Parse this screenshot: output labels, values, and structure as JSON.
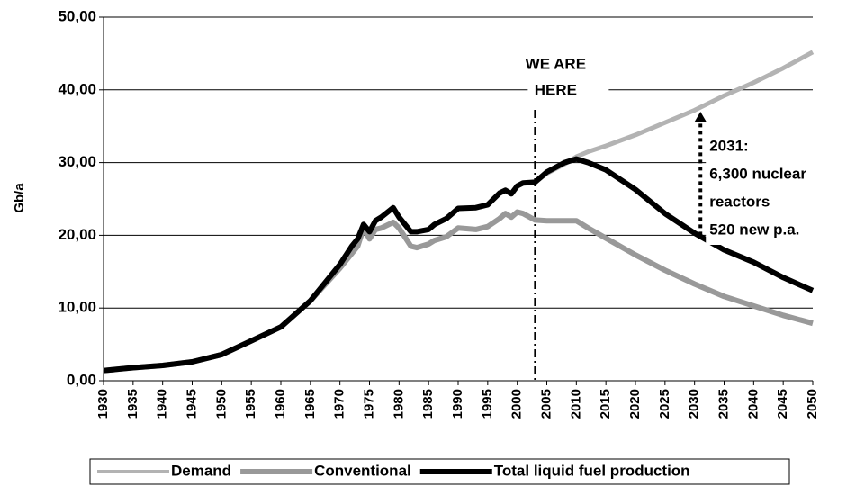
{
  "chart_data": {
    "type": "line",
    "ylabel": "Gb/a",
    "x": [
      1930,
      1935,
      1940,
      1945,
      1950,
      1955,
      1960,
      1965,
      1970,
      1972,
      1973,
      1974,
      1975,
      1976,
      1977,
      1979,
      1980,
      1982,
      1983,
      1985,
      1986,
      1988,
      1990,
      1993,
      1995,
      1997,
      1998,
      1999,
      2000,
      2001,
      2003,
      2005,
      2008,
      2010,
      2012,
      2015,
      2020,
      2025,
      2030,
      2035,
      2040,
      2045,
      2050
    ],
    "series": [
      {
        "name": "Demand",
        "color": "#b3b3b3",
        "values": [
          null,
          null,
          null,
          null,
          null,
          null,
          null,
          null,
          null,
          null,
          null,
          null,
          null,
          null,
          null,
          null,
          null,
          null,
          null,
          null,
          null,
          null,
          null,
          null,
          null,
          null,
          null,
          null,
          null,
          null,
          27.3,
          28.5,
          29.8,
          30.8,
          31.5,
          32.3,
          33.8,
          35.5,
          37.2,
          39.2,
          41,
          43,
          45.2
        ]
      },
      {
        "name": "Conventional",
        "color": "#999999",
        "values": [
          1.4,
          1.8,
          2.1,
          2.6,
          3.6,
          5.5,
          7.4,
          11,
          15.5,
          17.5,
          18.5,
          21,
          19.5,
          20.8,
          21,
          21.8,
          21,
          18.5,
          18.3,
          18.8,
          19.3,
          19.8,
          21,
          20.8,
          21.2,
          22.3,
          23,
          22.5,
          23.2,
          23,
          22.1,
          22,
          22,
          22,
          21,
          19.6,
          17.3,
          15.2,
          13.3,
          11.6,
          10.3,
          9,
          7.9
        ]
      },
      {
        "name": "Total liquid fuel production",
        "color": "#000000",
        "values": [
          1.4,
          1.8,
          2.1,
          2.6,
          3.6,
          5.5,
          7.4,
          11,
          16,
          18.5,
          19.5,
          21.5,
          20.5,
          22,
          22.5,
          23.8,
          22.5,
          20.5,
          20.5,
          20.8,
          21.5,
          22.3,
          23.7,
          23.8,
          24.2,
          25.8,
          26.2,
          25.7,
          26.8,
          27.2,
          27.3,
          28.7,
          30,
          30.5,
          30,
          29,
          26.3,
          23,
          20.3,
          18,
          16.3,
          14.2,
          12.4
        ]
      }
    ],
    "xlim": [
      1930,
      2050
    ],
    "xticks": [
      1930,
      1935,
      1940,
      1945,
      1950,
      1955,
      1960,
      1965,
      1970,
      1975,
      1980,
      1985,
      1990,
      1995,
      2000,
      2005,
      2010,
      2015,
      2020,
      2025,
      2030,
      2035,
      2040,
      2045,
      2050
    ],
    "ylim": [
      0,
      50
    ],
    "yticks": [
      {
        "value": 0,
        "label": "0,00"
      },
      {
        "value": 10,
        "label": "10,00"
      },
      {
        "value": 20,
        "label": "20,00"
      },
      {
        "value": 30,
        "label": "30,00"
      },
      {
        "value": 40,
        "label": "40,00"
      },
      {
        "value": 50,
        "label": "50,00"
      }
    ],
    "grid": true,
    "legend": "bottom",
    "annotations": [
      {
        "text": [
          "WE ARE",
          "HERE"
        ],
        "x": 2003
      },
      {
        "text": [
          "2031:",
          "6,300 nuclear",
          "reactors",
          "520 new p.a."
        ],
        "x": 2031,
        "y": [
          20,
          37
        ]
      }
    ]
  }
}
